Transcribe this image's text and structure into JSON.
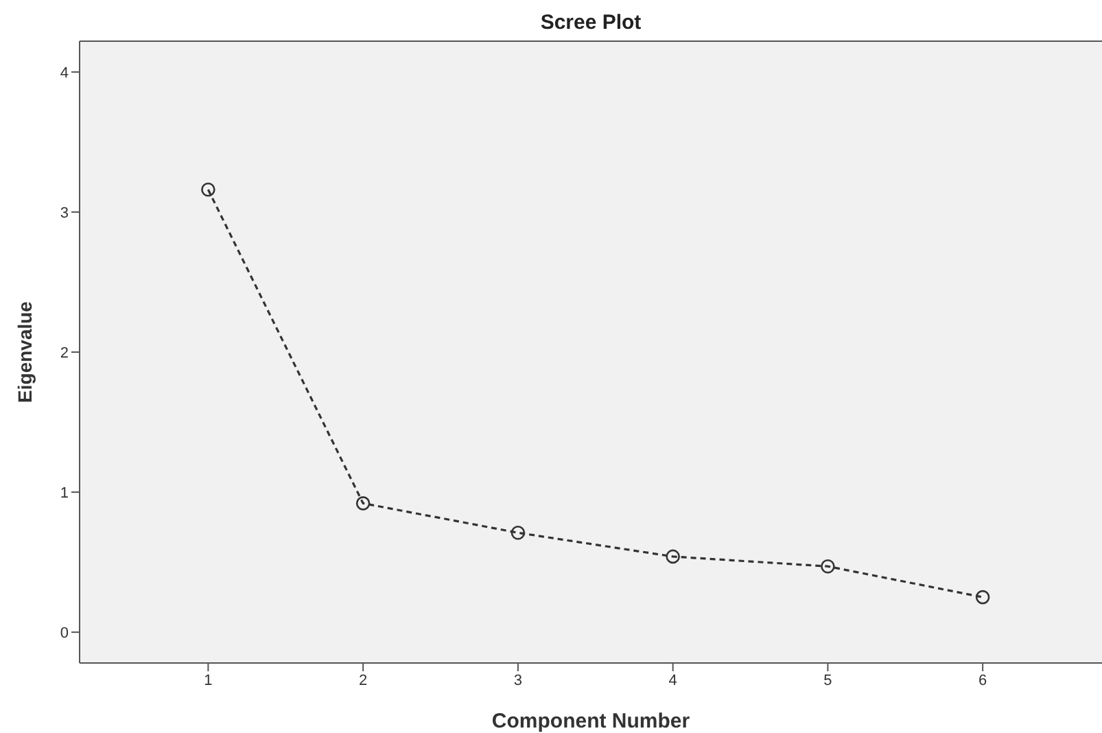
{
  "chart_data": {
    "type": "line",
    "title": "Scree Plot",
    "xlabel": "Component Number",
    "ylabel": "Eigenvalue",
    "x": [
      1,
      2,
      3,
      4,
      5,
      6
    ],
    "series": [
      {
        "color": "#333333",
        "values": [
          3.16,
          0.92,
          0.71,
          0.54,
          0.47,
          0.25
        ]
      }
    ],
    "xlim": [
      0.17,
      6.77
    ],
    "xticks": [
      1,
      2,
      3,
      4,
      5,
      6
    ],
    "ylim": [
      -0.22,
      4.22
    ],
    "yticks": [
      0,
      1,
      2,
      3,
      4
    ],
    "marker": "circle",
    "line_style": "dashed",
    "grid": false
  }
}
